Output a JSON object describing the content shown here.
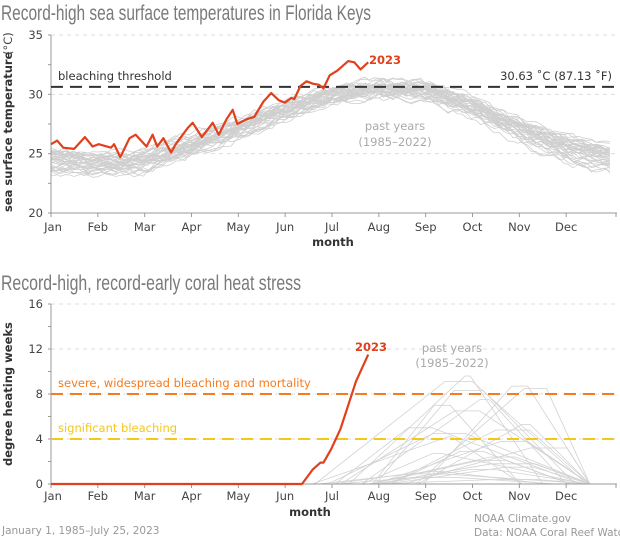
{
  "chart_data": [
    {
      "type": "line",
      "title": "Record-high sea surface temperatures in Florida Keys",
      "xlabel": "month",
      "ylabel": "sea surface temperature",
      "ylabel_unit": "(°C)",
      "xticks": [
        "Jan",
        "Feb",
        "Mar",
        "Apr",
        "May",
        "Jun",
        "Jul",
        "Aug",
        "Sep",
        "Oct",
        "Nov",
        "Dec"
      ],
      "yticks": [
        20,
        25,
        30,
        35
      ],
      "ylim": [
        20,
        35
      ],
      "grid": "horizontal dashed",
      "threshold": {
        "label": "bleaching threshold",
        "value": 30.63,
        "value_label": "30.63 ˚C (87.13 ˚F)",
        "color": "#333333"
      },
      "series": [
        {
          "name": "2023",
          "color": "#e0401c",
          "x_day_of_year": [
            0,
            4,
            8,
            15,
            22,
            27,
            31,
            39,
            41,
            45,
            51,
            55,
            62,
            66,
            69,
            73,
            78,
            81,
            89,
            92,
            98,
            105,
            109,
            114,
            118,
            121,
            127,
            132,
            138,
            143,
            148,
            152,
            156,
            158,
            162,
            166,
            170,
            174,
            177,
            181,
            186,
            193,
            197,
            201,
            206
          ],
          "y": [
            25.8,
            26.1,
            25.5,
            25.4,
            26.4,
            25.6,
            25.8,
            25.5,
            25.8,
            24.7,
            26.3,
            26.6,
            25.6,
            26.6,
            25.6,
            26.3,
            25.1,
            25.8,
            27.2,
            27.6,
            26.4,
            27.6,
            26.6,
            27.9,
            28.7,
            27.5,
            27.9,
            28.1,
            29.4,
            30.1,
            29.5,
            29.3,
            29.7,
            29.6,
            30.7,
            31.1,
            30.9,
            30.8,
            30.5,
            31.6,
            32.0,
            32.8,
            32.7,
            32.1,
            32.7
          ]
        },
        {
          "name": "past years (1985–2022)",
          "color": "#cccccc",
          "monthly_mean_approx": [
            24.3,
            23.9,
            24.2,
            25.5,
            27.0,
            28.6,
            29.8,
            30.4,
            30.2,
            28.8,
            27.0,
            25.3,
            24.4
          ],
          "spread_approx": 1.3
        }
      ]
    },
    {
      "type": "line",
      "title": "Record-high, record-early coral heat stress",
      "xlabel": "month",
      "ylabel": "degree heating weeks",
      "xticks": [
        "Jan",
        "Feb",
        "Mar",
        "Apr",
        "May",
        "Jun",
        "Jul",
        "Aug",
        "Sep",
        "Oct",
        "Nov",
        "Dec"
      ],
      "yticks": [
        0,
        4,
        8,
        12,
        16
      ],
      "ylim": [
        0,
        16
      ],
      "grid": "horizontal dashed",
      "thresholds": [
        {
          "label": "severe, widespread bleaching and mortality",
          "value": 8,
          "color": "#f47b20"
        },
        {
          "label": "significant bleaching",
          "value": 4,
          "color": "#f2c81a"
        }
      ],
      "series": [
        {
          "name": "2023",
          "color": "#e0401c",
          "x_day_of_year": [
            0,
            163,
            170,
            175,
            177,
            182,
            188,
            193,
            198,
            206
          ],
          "y": [
            0,
            0,
            1.3,
            1.9,
            1.9,
            3.1,
            4.9,
            7.0,
            9.1,
            11.5
          ]
        },
        {
          "name": "past years (1985–2022)",
          "color": "#cccccc",
          "peak_values_approx": [
            9.6,
            9.1,
            8.7,
            8.5,
            8.3,
            7.5,
            7.0,
            6.5,
            5.3,
            5.0,
            4.8,
            4.5,
            4.2,
            3.8,
            3.2,
            2.9,
            2.7,
            2.4,
            2.1,
            1.8,
            1.5,
            1.3,
            1.1,
            0.9,
            0.6,
            0.4
          ]
        }
      ]
    }
  ],
  "labels": {
    "series_2023": "2023",
    "past_years_line1": "past years",
    "past_years_line2": "(1985–2022)"
  },
  "footer": {
    "date_range": "January 1, 1985–July 25, 2023",
    "credit": "NOAA Climate.gov",
    "source": "Data: NOAA Coral Reef Watch"
  }
}
